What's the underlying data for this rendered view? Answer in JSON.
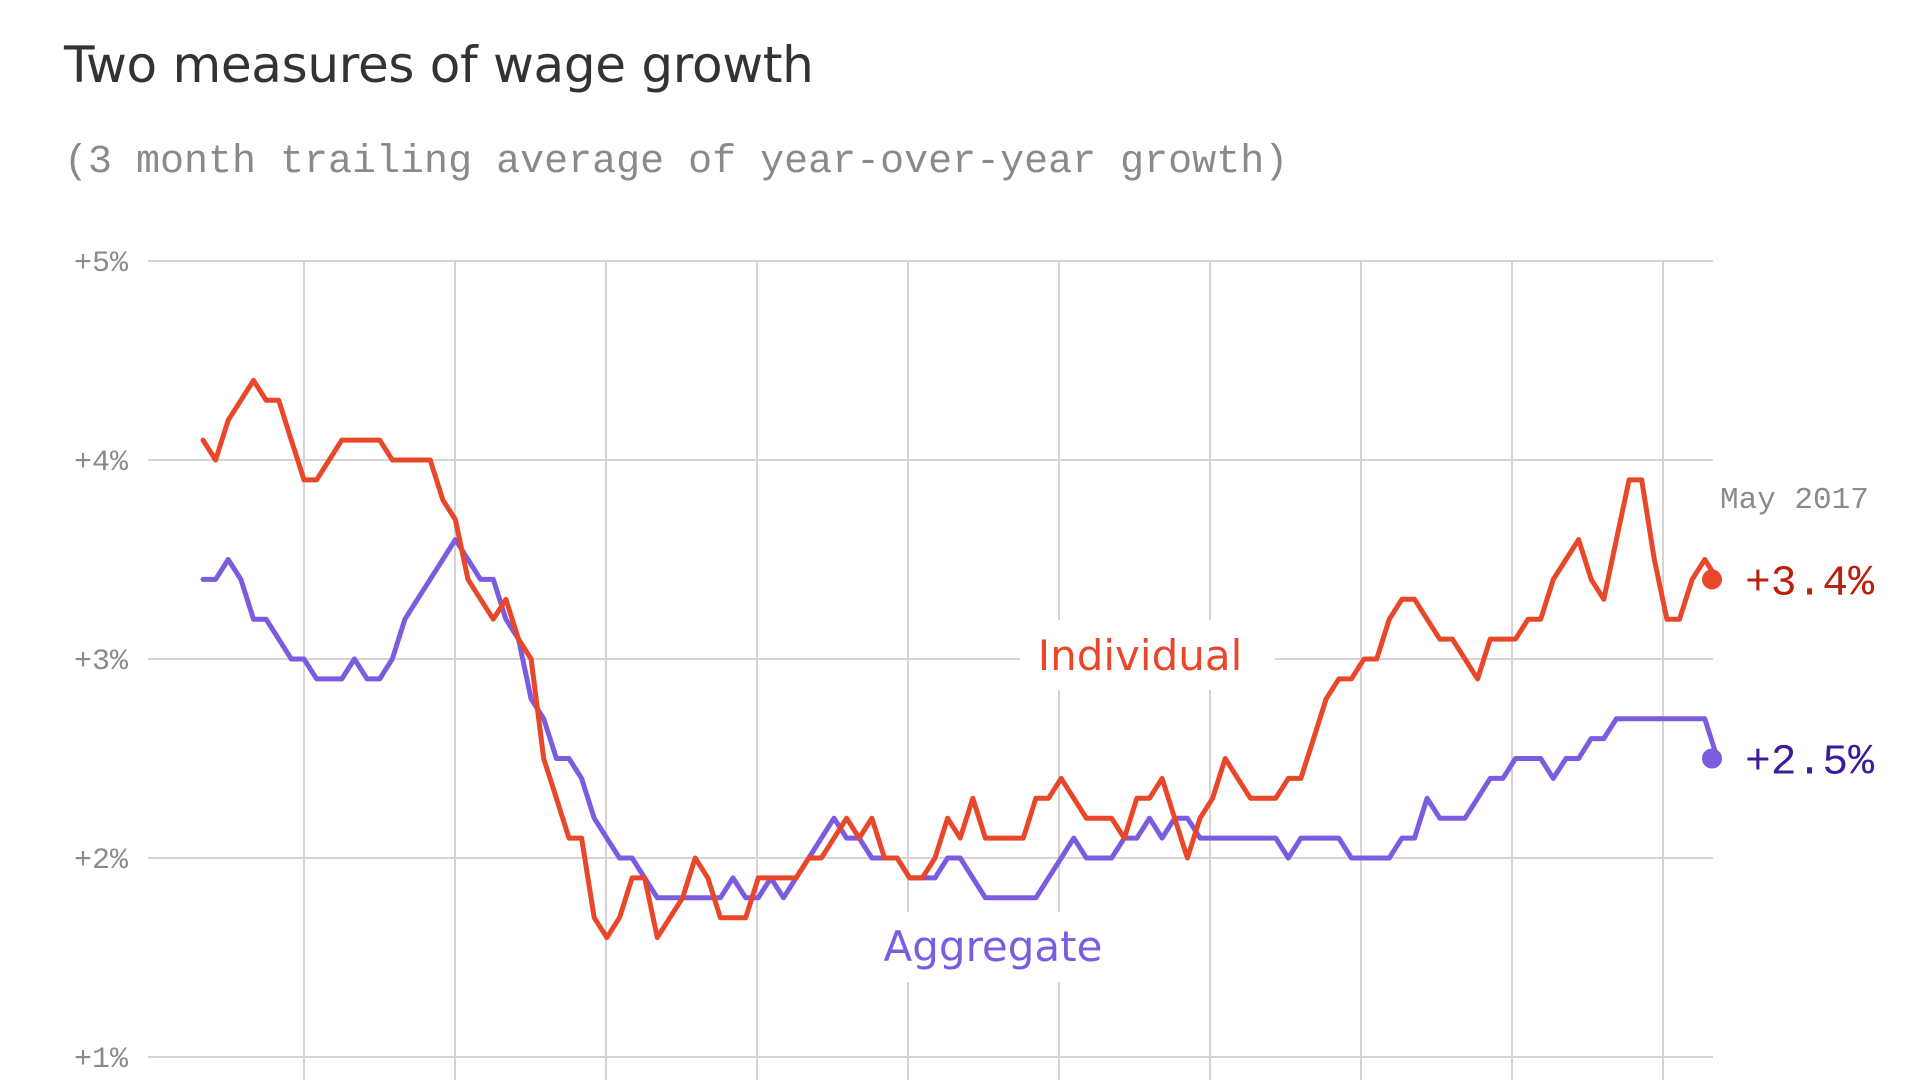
{
  "colors": {
    "individual": "#e8472a",
    "aggregate": "#7b5ce0",
    "individual_label": "#b8220c",
    "aggregate_label": "#3b1a9c",
    "grid": "#d4d4d4"
  },
  "chart_data": {
    "type": "line",
    "title": "Two measures of wage growth",
    "subtitle": "(3 month trailing average of year-over-year growth)",
    "ylim": [
      1,
      5
    ],
    "yticks": [
      {
        "value": 5,
        "label": "+5%"
      },
      {
        "value": 4,
        "label": "+4%"
      },
      {
        "value": 3,
        "label": "+3%"
      },
      {
        "value": 2,
        "label": "+2%"
      },
      {
        "value": 1,
        "label": "+1%"
      }
    ],
    "grid": true,
    "annotation": "May 2017",
    "series": [
      {
        "name": "Individual",
        "color": "#e8472a",
        "end_label": "+3.4%",
        "values": [
          4.1,
          4.0,
          4.2,
          4.3,
          4.4,
          4.3,
          4.3,
          4.1,
          3.9,
          3.9,
          4.0,
          4.1,
          4.1,
          4.1,
          4.1,
          4.0,
          4.0,
          4.0,
          4.0,
          3.8,
          3.7,
          3.4,
          3.3,
          3.2,
          3.3,
          3.1,
          3.0,
          2.5,
          2.3,
          2.1,
          2.1,
          1.7,
          1.6,
          1.7,
          1.9,
          1.9,
          1.6,
          1.7,
          1.8,
          2.0,
          1.9,
          1.7,
          1.7,
          1.7,
          1.9,
          1.9,
          1.9,
          1.9,
          2.0,
          2.0,
          2.1,
          2.2,
          2.1,
          2.2,
          2.0,
          2.0,
          1.9,
          1.9,
          2.0,
          2.2,
          2.1,
          2.3,
          2.1,
          2.1,
          2.1,
          2.1,
          2.3,
          2.3,
          2.4,
          2.3,
          2.2,
          2.2,
          2.2,
          2.1,
          2.3,
          2.3,
          2.4,
          2.2,
          2.0,
          2.2,
          2.3,
          2.5,
          2.4,
          2.3,
          2.3,
          2.3,
          2.4,
          2.4,
          2.6,
          2.8,
          2.9,
          2.9,
          3.0,
          3.0,
          3.2,
          3.3,
          3.3,
          3.2,
          3.1,
          3.1,
          3.0,
          2.9,
          3.1,
          3.1,
          3.1,
          3.2,
          3.2,
          3.4,
          3.5,
          3.6,
          3.4,
          3.3,
          3.6,
          3.9,
          3.9,
          3.5,
          3.2,
          3.2,
          3.4,
          3.5,
          3.4
        ]
      },
      {
        "name": "Aggregate",
        "color": "#7b5ce0",
        "end_label": "+2.5%",
        "values": [
          3.4,
          3.4,
          3.5,
          3.4,
          3.2,
          3.2,
          3.1,
          3.0,
          3.0,
          2.9,
          2.9,
          2.9,
          3.0,
          2.9,
          2.9,
          3.0,
          3.2,
          3.3,
          3.4,
          3.5,
          3.6,
          3.5,
          3.4,
          3.4,
          3.2,
          3.1,
          2.8,
          2.7,
          2.5,
          2.5,
          2.4,
          2.2,
          2.1,
          2.0,
          2.0,
          1.9,
          1.8,
          1.8,
          1.8,
          1.8,
          1.8,
          1.8,
          1.9,
          1.8,
          1.8,
          1.9,
          1.8,
          1.9,
          2.0,
          2.1,
          2.2,
          2.1,
          2.1,
          2.0,
          2.0,
          2.0,
          1.9,
          1.9,
          1.9,
          2.0,
          2.0,
          1.9,
          1.8,
          1.8,
          1.8,
          1.8,
          1.8,
          1.9,
          2.0,
          2.1,
          2.0,
          2.0,
          2.0,
          2.1,
          2.1,
          2.2,
          2.1,
          2.2,
          2.2,
          2.1,
          2.1,
          2.1,
          2.1,
          2.1,
          2.1,
          2.1,
          2.0,
          2.1,
          2.1,
          2.1,
          2.1,
          2.0,
          2.0,
          2.0,
          2.0,
          2.1,
          2.1,
          2.3,
          2.2,
          2.2,
          2.2,
          2.3,
          2.4,
          2.4,
          2.5,
          2.5,
          2.5,
          2.4,
          2.5,
          2.5,
          2.6,
          2.6,
          2.7,
          2.7,
          2.7,
          2.7,
          2.7,
          2.7,
          2.7,
          2.7,
          2.5
        ]
      }
    ]
  }
}
